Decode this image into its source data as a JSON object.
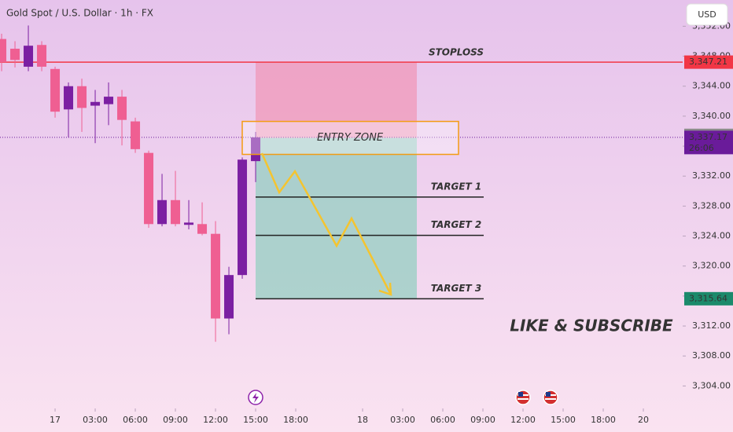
{
  "chart_data": {
    "type": "candlestick",
    "title": "Gold Spot / U.S. Dollar · 1h · FX",
    "currency": "USD",
    "up_color": "#7b1fa2",
    "down_color": "#ef5f92",
    "open": [
      3350.3,
      3349.0,
      3346.6,
      3349.5,
      3346.3,
      3340.9,
      3344.0,
      3341.4,
      3341.6,
      3342.6,
      3339.3,
      3335.1,
      3325.6,
      3328.8,
      3325.5,
      3325.6,
      3324.3,
      3313.0,
      3318.8,
      3334.0
    ],
    "high": [
      3351.0,
      3350.0,
      3352.1,
      3350.0,
      3346.6,
      3344.5,
      3345.0,
      3343.5,
      3344.5,
      3343.5,
      3339.8,
      3335.4,
      3332.3,
      3332.7,
      3328.8,
      3328.5,
      3326.0,
      3319.9,
      3334.5,
      3337.9
    ],
    "low": [
      3346.0,
      3346.5,
      3346.0,
      3346.0,
      3339.8,
      3337.2,
      3337.9,
      3336.4,
      3338.8,
      3336.1,
      3335.1,
      3325.1,
      3325.3,
      3325.3,
      3324.9,
      3324.1,
      3309.9,
      3310.9,
      3318.3,
      3331.2
    ],
    "close": [
      3347.2,
      3347.5,
      3349.4,
      3346.6,
      3340.6,
      3344.0,
      3341.1,
      3341.9,
      3342.6,
      3339.5,
      3335.6,
      3325.6,
      3328.8,
      3325.6,
      3325.8,
      3324.3,
      3313.0,
      3318.8,
      3334.2,
      3337.17
    ],
    "ylim": [
      3301,
      3355.5
    ],
    "yticks": [
      {
        "value": 3304,
        "label": "3,304.00"
      },
      {
        "value": 3308,
        "label": "3,308.00"
      },
      {
        "value": 3312,
        "label": "3,312.00"
      },
      {
        "value": 3316,
        "label": "3,316.00"
      },
      {
        "value": 3320,
        "label": "3,320.00"
      },
      {
        "value": 3324,
        "label": "3,324.00"
      },
      {
        "value": 3328,
        "label": "3,328.00"
      },
      {
        "value": 3332,
        "label": "3,332.00"
      },
      {
        "value": 3336,
        "label": "3,336.00"
      },
      {
        "value": 3340,
        "label": "3,340.00"
      },
      {
        "value": 3344,
        "label": "3,344.00"
      },
      {
        "value": 3348,
        "label": "3,348.00"
      },
      {
        "value": 3352,
        "label": "3,352.00"
      }
    ],
    "xlim": [
      -0.12,
      50.94
    ],
    "xticks": [
      {
        "value": 4,
        "label": "17"
      },
      {
        "value": 7,
        "label": "03:00"
      },
      {
        "value": 10,
        "label": "06:00"
      },
      {
        "value": 13,
        "label": "09:00"
      },
      {
        "value": 16,
        "label": "12:00"
      },
      {
        "value": 19,
        "label": "15:00"
      },
      {
        "value": 22,
        "label": "18:00"
      },
      {
        "value": 27,
        "label": "18"
      },
      {
        "value": 30,
        "label": "03:00"
      },
      {
        "value": 33,
        "label": "06:00"
      },
      {
        "value": 36,
        "label": "09:00"
      },
      {
        "value": 39,
        "label": "12:00"
      },
      {
        "value": 42,
        "label": "15:00"
      },
      {
        "value": 45,
        "label": "18:00"
      },
      {
        "value": 48,
        "label": "20"
      }
    ],
    "stoploss": {
      "label": "STOPLOSS",
      "value": 3347.21
    },
    "entry_zone": {
      "label": "ENTRY ZONE",
      "high": 3339.3,
      "low": 3334.9
    },
    "targets": [
      {
        "label": "TARGET 1",
        "value": 3329.2
      },
      {
        "label": "TARGET 2",
        "value": 3324.1
      },
      {
        "label": "TARGET 3",
        "value": 3315.64
      }
    ],
    "price_labels": [
      {
        "value": 3347.21,
        "label": "3,347.21",
        "color": "#f23645"
      },
      {
        "value": 3337.44,
        "label": "3,337.44",
        "color": "#8c8c8c"
      },
      {
        "value": 3337.17,
        "label": "3,337.17",
        "countdown": "26:06",
        "color": "#6a1b9a"
      },
      {
        "value": 3315.64,
        "label": "3,315.64",
        "color": "#1b8a6b"
      }
    ],
    "overlay_text": "LIKE & SUBSCRIBE"
  }
}
